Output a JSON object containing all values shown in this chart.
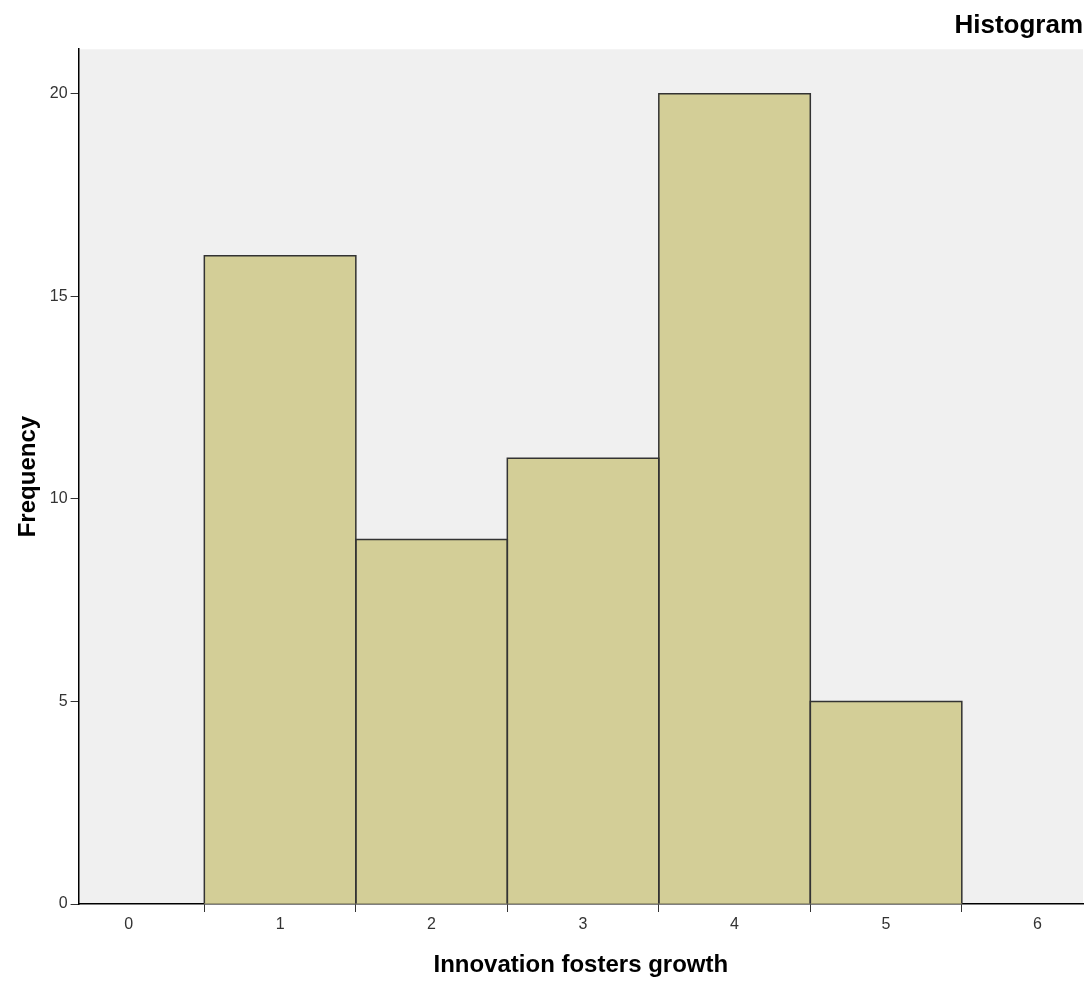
{
  "chart_data": {
    "type": "histogram",
    "title": "Histogram",
    "xlabel": "Innovation fosters growth",
    "ylabel": "Frequency",
    "bins": [
      0.5,
      1.5,
      2.5,
      3.5,
      4.5,
      5.5
    ],
    "values": [
      16,
      9,
      11,
      20,
      5
    ],
    "color": "#d3ce97",
    "xlim": [
      -0.33,
      6.3
    ],
    "xticks": [
      0,
      1,
      2,
      3,
      4,
      5,
      6
    ],
    "ylim": [
      0,
      21.1
    ],
    "yticks": [
      0,
      5,
      10,
      15,
      20
    ],
    "grid": false,
    "legend": false
  }
}
